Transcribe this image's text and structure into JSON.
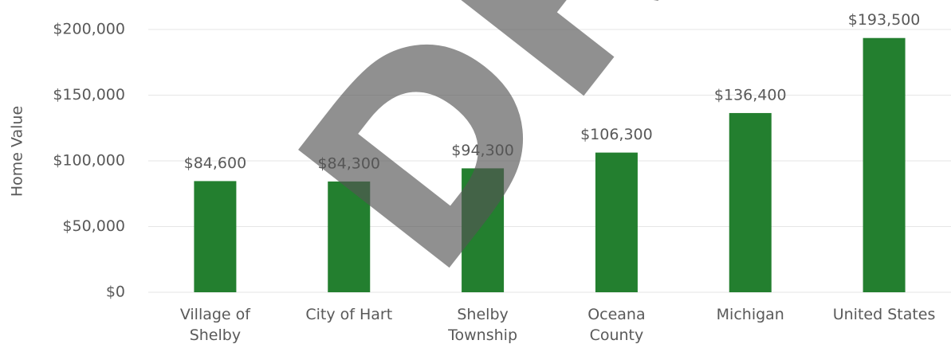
{
  "chart_data": {
    "type": "bar",
    "y_axis_label": "Home Value",
    "categories": [
      "Village of\nShelby",
      "City of Hart",
      "Shelby\nTownship",
      "Oceana\nCounty",
      "Michigan",
      "United States"
    ],
    "values": [
      84600,
      84300,
      94300,
      106300,
      136400,
      193500
    ],
    "value_labels": [
      "$84,600",
      "$84,300",
      "$94,300",
      "$106,300",
      "$136,400",
      "$193,500"
    ],
    "color": "#237f2f",
    "ylim": [
      0,
      200000
    ],
    "yticks": [
      {
        "value": 0,
        "label": "$0"
      },
      {
        "value": 50000,
        "label": "$50,000"
      },
      {
        "value": 100000,
        "label": "$100,000"
      },
      {
        "value": 150000,
        "label": "$150,000"
      },
      {
        "value": 200000,
        "label": "$200,000"
      }
    ],
    "grid": true,
    "watermark": "DRAFT"
  }
}
